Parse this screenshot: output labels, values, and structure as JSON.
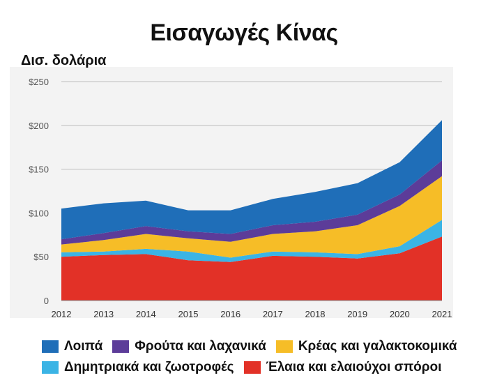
{
  "chart_data": {
    "type": "area",
    "stacked": true,
    "title": "Εισαγωγές Κίνας",
    "unit_label": "Δισ. δολάρια",
    "x": [
      "2012",
      "2013",
      "2014",
      "2015",
      "2016",
      "2017",
      "2018",
      "2019",
      "2020",
      "2021"
    ],
    "ylim": [
      0,
      250
    ],
    "yticks": [
      0,
      50,
      100,
      150,
      200,
      250
    ],
    "ytick_labels": [
      "0",
      "$50",
      "$100",
      "$150",
      "$200",
      "$250"
    ],
    "grid": true,
    "legend_position": "bottom",
    "series": [
      {
        "name": "Έλαια και ελαιούχοι σπόροι",
        "color": "#e23127",
        "values": [
          50,
          52,
          53,
          46,
          44,
          51,
          50,
          48,
          54,
          73
        ]
      },
      {
        "name": "Δημητριακά και ζωοτροφές",
        "color": "#3bb4e5",
        "values": [
          5,
          4,
          6,
          10,
          5,
          5,
          5,
          5,
          8,
          19
        ]
      },
      {
        "name": "Κρέας και γαλακτοκομικά",
        "color": "#f6bd27",
        "values": [
          9,
          13,
          17,
          15,
          18,
          20,
          24,
          33,
          46,
          50
        ]
      },
      {
        "name": "Φρούτα και λαχανικά",
        "color": "#5c3c99",
        "values": [
          6,
          8,
          9,
          8,
          9,
          10,
          11,
          12,
          13,
          18
        ]
      },
      {
        "name": "Λοιπά",
        "color": "#1f6eb8",
        "values": [
          35,
          34,
          29,
          24,
          27,
          30,
          34,
          36,
          37,
          46
        ]
      }
    ]
  },
  "legend": {
    "row1": [
      "Λοιπά",
      "Φρούτα και λαχανικά",
      "Κρέας και γαλακτοκομικά"
    ],
    "row2": [
      "Δημητριακά και ζωοτροφές",
      "Έλαια και ελαιούχοι σπόροι"
    ]
  }
}
